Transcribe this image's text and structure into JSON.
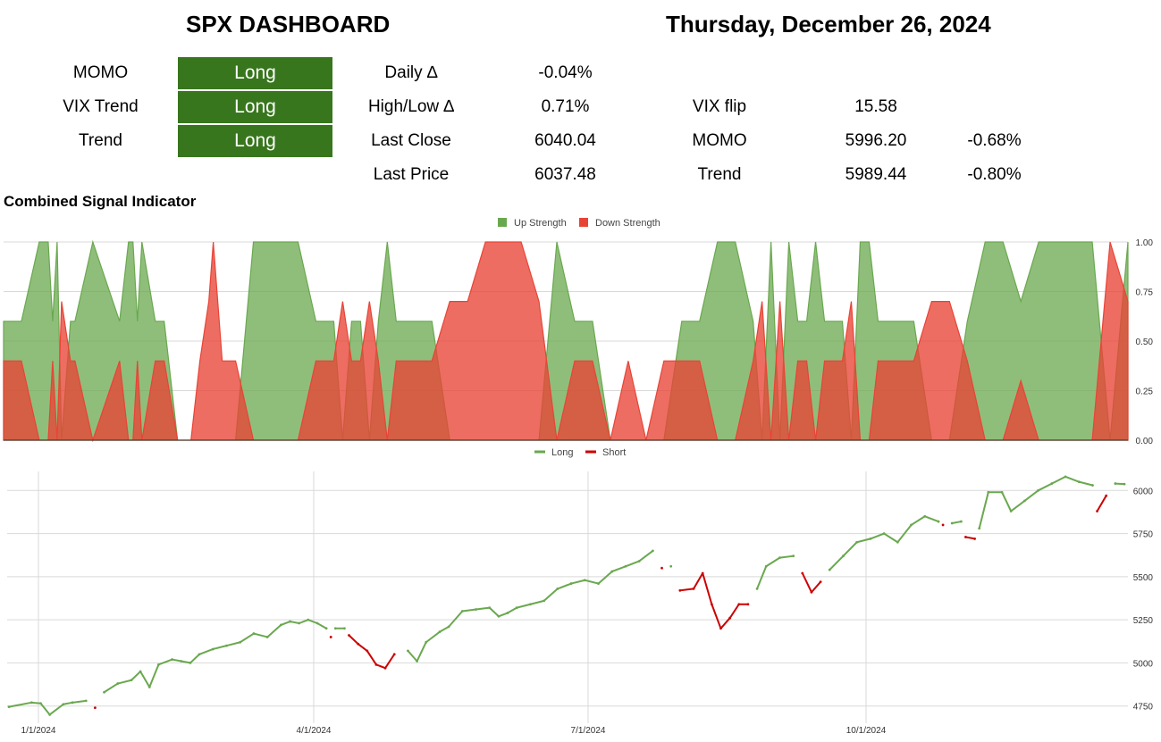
{
  "header": {
    "title": "SPX DASHBOARD",
    "date": "Thursday, December 26, 2024"
  },
  "signals": [
    {
      "label": "MOMO",
      "value": "Long"
    },
    {
      "label": "VIX Trend",
      "value": "Long"
    },
    {
      "label": "Trend",
      "value": "Long"
    }
  ],
  "stats": [
    {
      "label": "Daily ∆",
      "value": "-0.04%"
    },
    {
      "label": "High/Low ∆",
      "value": "0.71%"
    },
    {
      "label": "Last Close",
      "value": "6040.04"
    },
    {
      "label": "Last Price",
      "value": "6037.48"
    }
  ],
  "levels": [
    {
      "label": "VIX flip",
      "value": "15.58",
      "pct": ""
    },
    {
      "label": "MOMO",
      "value": "5996.20",
      "pct": "-0.68%"
    },
    {
      "label": "Trend",
      "value": "5989.44",
      "pct": "-0.80%"
    }
  ],
  "colors": {
    "long_green": "#38761d",
    "up_fill": "#6aa84f",
    "down_fill": "#e84436",
    "short_red": "#cc0000"
  },
  "chart_data": [
    {
      "type": "area",
      "title": "Combined Signal Indicator",
      "legend_position": "top",
      "series": [
        {
          "name": "Up Strength",
          "x": [
            0,
            4,
            8,
            10,
            11,
            12,
            13,
            15,
            16,
            20,
            26,
            28,
            29,
            30,
            31,
            34,
            36,
            39,
            40,
            42,
            44,
            46,
            47,
            48,
            49,
            52,
            56,
            58,
            60,
            62,
            66,
            70,
            74,
            76,
            78,
            80,
            82,
            84,
            86,
            88,
            92,
            96,
            100,
            104,
            108,
            112,
            116,
            120,
            124,
            128,
            132,
            136,
            140,
            144,
            148,
            152,
            156,
            160,
            164,
            168,
            170,
            172,
            174,
            176,
            178,
            180,
            182,
            184,
            186,
            188,
            190,
            192,
            194,
            196,
            200,
            204,
            208,
            212,
            216,
            220,
            224,
            228,
            232,
            236,
            240,
            244,
            248,
            252
          ],
          "values": [
            0.6,
            0.6,
            1,
            1,
            0.6,
            1,
            0,
            0.6,
            0.6,
            1,
            0.6,
            1,
            1,
            0.6,
            1,
            0.6,
            0.6,
            0,
            0,
            0,
            0,
            0,
            0,
            0,
            0,
            0,
            1,
            1,
            1,
            1,
            1,
            0.6,
            0.6,
            0,
            0.6,
            0.6,
            0,
            0.6,
            1,
            0.6,
            0.6,
            0.6,
            0,
            0,
            0,
            0,
            0,
            0,
            1,
            0.6,
            0.6,
            0,
            0,
            0,
            0,
            0.6,
            0.6,
            1,
            1,
            0.6,
            0,
            1,
            0,
            1,
            0.6,
            0.6,
            1,
            0.6,
            0.6,
            0.6,
            0,
            1,
            1,
            0.6,
            0.6,
            0.6,
            0,
            0,
            0.6,
            1,
            1,
            0.7,
            1,
            1,
            1,
            1,
            0,
            1
          ]
        },
        {
          "name": "Down Strength",
          "x": [
            0,
            4,
            8,
            10,
            11,
            12,
            13,
            15,
            16,
            20,
            26,
            28,
            29,
            30,
            31,
            34,
            36,
            39,
            40,
            42,
            44,
            46,
            47,
            48,
            49,
            52,
            56,
            58,
            60,
            62,
            66,
            70,
            74,
            76,
            78,
            80,
            82,
            84,
            86,
            88,
            92,
            96,
            100,
            104,
            108,
            112,
            116,
            120,
            124,
            128,
            132,
            136,
            140,
            144,
            148,
            152,
            156,
            160,
            164,
            168,
            170,
            172,
            174,
            176,
            178,
            180,
            182,
            184,
            186,
            188,
            190,
            192,
            194,
            196,
            200,
            204,
            208,
            212,
            216,
            220,
            224,
            228,
            232,
            236,
            240,
            244,
            248,
            252
          ],
          "values": [
            0.4,
            0.4,
            0,
            0,
            0.4,
            0,
            0.7,
            0.4,
            0.4,
            0,
            0.4,
            0,
            0,
            0.4,
            0,
            0.4,
            0.4,
            0,
            0,
            0,
            0.4,
            0.7,
            1,
            0.7,
            0.4,
            0.4,
            0,
            0,
            0,
            0,
            0,
            0.4,
            0.4,
            0.7,
            0.4,
            0.4,
            0.7,
            0.4,
            0,
            0.4,
            0.4,
            0.4,
            0.7,
            0.7,
            1,
            1,
            1,
            0.7,
            0,
            0.4,
            0.4,
            0,
            0.4,
            0,
            0.4,
            0.4,
            0.4,
            0,
            0,
            0.4,
            0.7,
            0,
            0.7,
            0,
            0.4,
            0.4,
            0,
            0.4,
            0.4,
            0.4,
            0.7,
            0,
            0,
            0.4,
            0.4,
            0.4,
            0.7,
            0.7,
            0.4,
            0,
            0,
            0.3,
            0,
            0,
            0,
            0,
            1,
            0.7
          ]
        }
      ],
      "ylim": [
        0,
        1
      ],
      "yticks": [
        "0.00",
        "0.25",
        "0.50",
        "0.75",
        "1.00"
      ],
      "grid": true
    },
    {
      "type": "line",
      "title": "",
      "legend_position": "top",
      "series": [
        {
          "name": "Long"
        },
        {
          "name": "Short"
        }
      ],
      "x_ticks": [
        "1/1/2024",
        "4/1/2024",
        "7/1/2024",
        "10/1/2024"
      ],
      "yticks": [
        "4750",
        "5000",
        "5250",
        "5500",
        "5750",
        "6000"
      ],
      "ylim": [
        4650,
        6100
      ],
      "grid": true,
      "points": [
        {
          "d": 0,
          "v": 4745,
          "s": "L"
        },
        {
          "d": 5,
          "v": 4770,
          "s": "L"
        },
        {
          "d": 7,
          "v": 4765,
          "s": "L"
        },
        {
          "d": 9,
          "v": 4700,
          "s": "L"
        },
        {
          "d": 12,
          "v": 4760,
          "s": "L"
        },
        {
          "d": 14,
          "v": 4770,
          "s": "L"
        },
        {
          "d": 17,
          "v": 4780,
          "s": "L"
        },
        {
          "d": 19,
          "v": 4740,
          "s": "S"
        },
        {
          "d": 21,
          "v": 4830,
          "s": "L"
        },
        {
          "d": 24,
          "v": 4880,
          "s": "L"
        },
        {
          "d": 27,
          "v": 4900,
          "s": "L"
        },
        {
          "d": 29,
          "v": 4950,
          "s": "L"
        },
        {
          "d": 31,
          "v": 4860,
          "s": "L"
        },
        {
          "d": 33,
          "v": 4990,
          "s": "L"
        },
        {
          "d": 36,
          "v": 5020,
          "s": "L"
        },
        {
          "d": 38,
          "v": 5010,
          "s": "L"
        },
        {
          "d": 40,
          "v": 5000,
          "s": "L"
        },
        {
          "d": 42,
          "v": 5050,
          "s": "L"
        },
        {
          "d": 45,
          "v": 5080,
          "s": "L"
        },
        {
          "d": 48,
          "v": 5100,
          "s": "L"
        },
        {
          "d": 51,
          "v": 5120,
          "s": "L"
        },
        {
          "d": 54,
          "v": 5170,
          "s": "L"
        },
        {
          "d": 57,
          "v": 5150,
          "s": "L"
        },
        {
          "d": 60,
          "v": 5220,
          "s": "L"
        },
        {
          "d": 62,
          "v": 5240,
          "s": "L"
        },
        {
          "d": 64,
          "v": 5230,
          "s": "L"
        },
        {
          "d": 66,
          "v": 5250,
          "s": "L"
        },
        {
          "d": 68,
          "v": 5230,
          "s": "L"
        },
        {
          "d": 70,
          "v": 5200,
          "s": "L"
        },
        {
          "d": 71,
          "v": 5150,
          "s": "S"
        },
        {
          "d": 72,
          "v": 5200,
          "s": "L"
        },
        {
          "d": 74,
          "v": 5200,
          "s": "L"
        },
        {
          "d": 75,
          "v": 5160,
          "s": "S"
        },
        {
          "d": 77,
          "v": 5110,
          "s": "S"
        },
        {
          "d": 79,
          "v": 5070,
          "s": "S"
        },
        {
          "d": 81,
          "v": 4990,
          "s": "S"
        },
        {
          "d": 83,
          "v": 4970,
          "s": "S"
        },
        {
          "d": 85,
          "v": 5050,
          "s": "S"
        },
        {
          "d": 88,
          "v": 5070,
          "s": "L"
        },
        {
          "d": 90,
          "v": 5010,
          "s": "L"
        },
        {
          "d": 92,
          "v": 5120,
          "s": "L"
        },
        {
          "d": 95,
          "v": 5180,
          "s": "L"
        },
        {
          "d": 97,
          "v": 5210,
          "s": "L"
        },
        {
          "d": 100,
          "v": 5300,
          "s": "L"
        },
        {
          "d": 103,
          "v": 5310,
          "s": "L"
        },
        {
          "d": 106,
          "v": 5320,
          "s": "L"
        },
        {
          "d": 108,
          "v": 5270,
          "s": "L"
        },
        {
          "d": 110,
          "v": 5290,
          "s": "L"
        },
        {
          "d": 112,
          "v": 5320,
          "s": "L"
        },
        {
          "d": 115,
          "v": 5340,
          "s": "L"
        },
        {
          "d": 118,
          "v": 5360,
          "s": "L"
        },
        {
          "d": 121,
          "v": 5430,
          "s": "L"
        },
        {
          "d": 124,
          "v": 5460,
          "s": "L"
        },
        {
          "d": 127,
          "v": 5480,
          "s": "L"
        },
        {
          "d": 130,
          "v": 5460,
          "s": "L"
        },
        {
          "d": 133,
          "v": 5530,
          "s": "L"
        },
        {
          "d": 136,
          "v": 5560,
          "s": "L"
        },
        {
          "d": 139,
          "v": 5590,
          "s": "L"
        },
        {
          "d": 142,
          "v": 5650,
          "s": "L"
        },
        {
          "d": 144,
          "v": 5550,
          "s": "S"
        },
        {
          "d": 146,
          "v": 5560,
          "s": "L"
        },
        {
          "d": 148,
          "v": 5420,
          "s": "S"
        },
        {
          "d": 151,
          "v": 5430,
          "s": "S"
        },
        {
          "d": 153,
          "v": 5520,
          "s": "S"
        },
        {
          "d": 155,
          "v": 5340,
          "s": "S"
        },
        {
          "d": 157,
          "v": 5200,
          "s": "S"
        },
        {
          "d": 159,
          "v": 5260,
          "s": "S"
        },
        {
          "d": 161,
          "v": 5340,
          "s": "S"
        },
        {
          "d": 163,
          "v": 5340,
          "s": "S"
        },
        {
          "d": 165,
          "v": 5430,
          "s": "L"
        },
        {
          "d": 167,
          "v": 5560,
          "s": "L"
        },
        {
          "d": 170,
          "v": 5610,
          "s": "L"
        },
        {
          "d": 173,
          "v": 5620,
          "s": "L"
        },
        {
          "d": 175,
          "v": 5520,
          "s": "S"
        },
        {
          "d": 177,
          "v": 5410,
          "s": "S"
        },
        {
          "d": 179,
          "v": 5470,
          "s": "S"
        },
        {
          "d": 181,
          "v": 5540,
          "s": "L"
        },
        {
          "d": 184,
          "v": 5620,
          "s": "L"
        },
        {
          "d": 187,
          "v": 5700,
          "s": "L"
        },
        {
          "d": 190,
          "v": 5720,
          "s": "L"
        },
        {
          "d": 193,
          "v": 5750,
          "s": "L"
        },
        {
          "d": 196,
          "v": 5700,
          "s": "L"
        },
        {
          "d": 199,
          "v": 5800,
          "s": "L"
        },
        {
          "d": 202,
          "v": 5850,
          "s": "L"
        },
        {
          "d": 205,
          "v": 5820,
          "s": "L"
        },
        {
          "d": 206,
          "v": 5800,
          "s": "S"
        },
        {
          "d": 208,
          "v": 5810,
          "s": "L"
        },
        {
          "d": 210,
          "v": 5820,
          "s": "L"
        },
        {
          "d": 211,
          "v": 5730,
          "s": "S"
        },
        {
          "d": 213,
          "v": 5720,
          "s": "S"
        },
        {
          "d": 214,
          "v": 5780,
          "s": "L"
        },
        {
          "d": 216,
          "v": 5990,
          "s": "L"
        },
        {
          "d": 219,
          "v": 5990,
          "s": "L"
        },
        {
          "d": 221,
          "v": 5880,
          "s": "L"
        },
        {
          "d": 224,
          "v": 5940,
          "s": "L"
        },
        {
          "d": 227,
          "v": 6000,
          "s": "L"
        },
        {
          "d": 230,
          "v": 6040,
          "s": "L"
        },
        {
          "d": 233,
          "v": 6080,
          "s": "L"
        },
        {
          "d": 236,
          "v": 6050,
          "s": "L"
        },
        {
          "d": 239,
          "v": 6030,
          "s": "L"
        },
        {
          "d": 240,
          "v": 5880,
          "s": "S"
        },
        {
          "d": 242,
          "v": 5970,
          "s": "S"
        },
        {
          "d": 244,
          "v": 6040,
          "s": "L"
        },
        {
          "d": 246,
          "v": 6037,
          "s": "L"
        }
      ]
    }
  ]
}
